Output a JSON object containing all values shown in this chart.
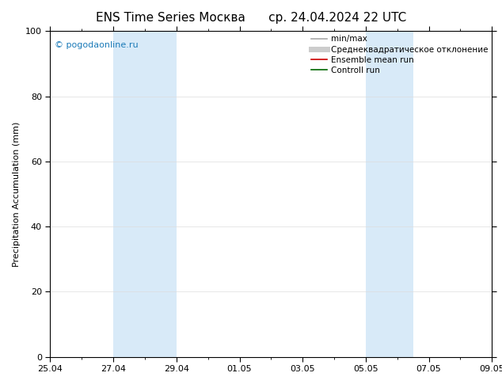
{
  "title_left": "ENS Time Series Москва",
  "title_right": "ср. 24.04.2024 22 UTC",
  "ylabel": "Precipitation Accumulation (mm)",
  "ylim": [
    0,
    100
  ],
  "yticks": [
    0,
    20,
    40,
    60,
    80,
    100
  ],
  "x_start_days": 0,
  "x_end_days": 14,
  "x_tick_days": [
    0,
    2,
    4,
    6,
    8,
    10,
    12,
    14
  ],
  "x_tick_labels": [
    "25.04",
    "27.04",
    "29.04",
    "01.05",
    "03.05",
    "05.05",
    "07.05",
    "09.05"
  ],
  "shaded_regions": [
    {
      "x_start": 2,
      "x_end": 4,
      "color": "#d8eaf8"
    },
    {
      "x_start": 10,
      "x_end": 11.5,
      "color": "#d8eaf8"
    }
  ],
  "watermark": "© pogodaonline.ru",
  "watermark_color": "#1a7ab8",
  "legend_entries": [
    {
      "label": "min/max",
      "color": "#aaaaaa",
      "lw": 1.2
    },
    {
      "label": "Среднеквадратическое отклонение",
      "color": "#cccccc",
      "lw": 5
    },
    {
      "label": "Ensemble mean run",
      "color": "#cc0000",
      "lw": 1.2
    },
    {
      "label": "Controll run",
      "color": "#006600",
      "lw": 1.2
    }
  ],
  "background_color": "#ffffff",
  "plot_bg_color": "#ffffff",
  "spine_color": "#000000",
  "tick_color": "#000000",
  "grid_color": "#dddddd",
  "title_fontsize": 11,
  "label_fontsize": 8,
  "tick_fontsize": 8,
  "legend_fontsize": 7.5
}
